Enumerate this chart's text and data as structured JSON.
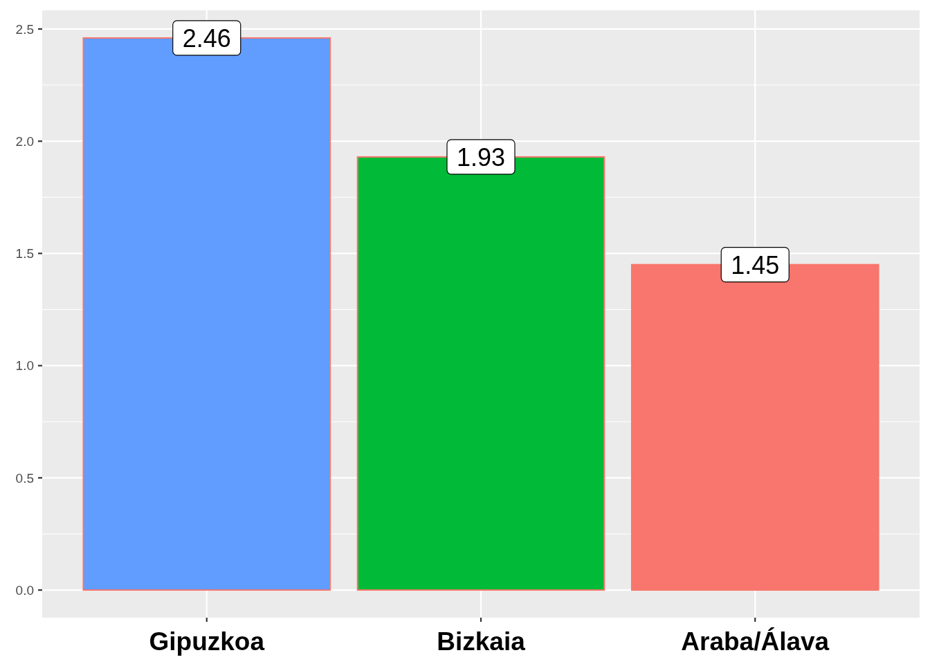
{
  "chart_data": {
    "type": "bar",
    "categories": [
      "Gipuzkoa",
      "Bizkaia",
      "Araba/Álava"
    ],
    "values": [
      2.46,
      1.93,
      1.45
    ],
    "colors": [
      "#619cff",
      "#00ba38",
      "#f8766d"
    ],
    "ylim": [
      -0.123,
      2.583
    ],
    "yticks": [
      {
        "value": 0,
        "label": "0.0"
      },
      0.5,
      {
        "value": 1,
        "label": "1.0"
      },
      1.5,
      {
        "value": 2,
        "label": "2.0"
      },
      2.5
    ],
    "grid": true,
    "data_labels": true
  }
}
